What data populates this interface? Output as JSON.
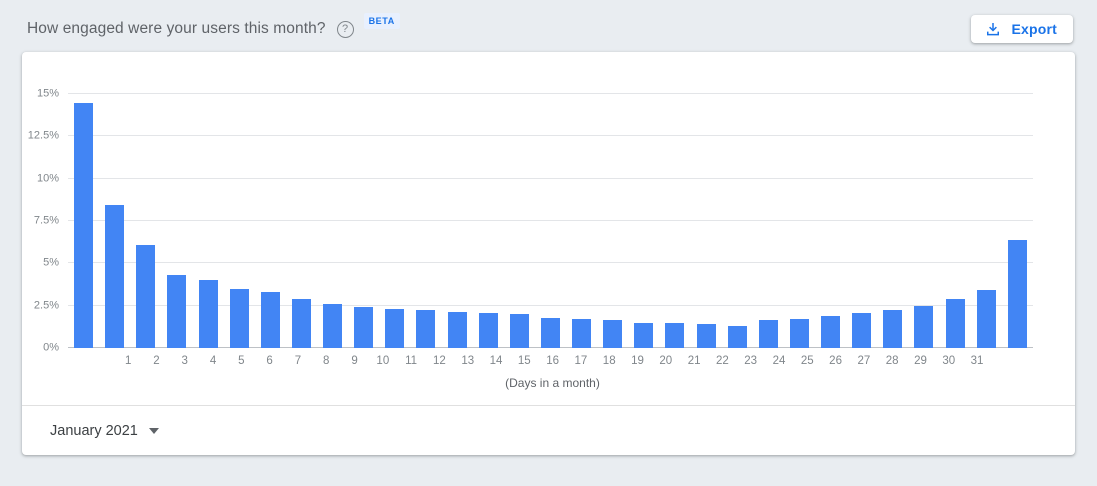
{
  "header": {
    "title": "How engaged were your users this month?",
    "help_icon": "?",
    "beta_label": "BETA",
    "export_label": "Export"
  },
  "footer": {
    "month_selector": "January 2021"
  },
  "colors": {
    "bar": "#4285f4",
    "accent": "#1a73e8",
    "beta_bg": "#e8f0fe",
    "background": "#e9edf1",
    "tick_text": "#80868b"
  },
  "chart_data": {
    "type": "bar",
    "title": "How engaged were your users this month?",
    "xlabel": "(Days in a month)",
    "ylabel": "",
    "categories": [
      1,
      2,
      3,
      4,
      5,
      6,
      7,
      8,
      9,
      10,
      11,
      12,
      13,
      14,
      15,
      16,
      17,
      18,
      19,
      20,
      21,
      22,
      23,
      24,
      25,
      26,
      27,
      28,
      29,
      30,
      31
    ],
    "values": [
      14.45,
      8.45,
      6.1,
      4.3,
      4.0,
      3.5,
      3.3,
      2.9,
      2.6,
      2.45,
      2.3,
      2.25,
      2.15,
      2.05,
      2.0,
      1.8,
      1.7,
      1.65,
      1.5,
      1.45,
      1.4,
      1.3,
      1.65,
      1.7,
      1.9,
      2.05,
      2.25,
      2.5,
      2.9,
      3.4,
      6.4
    ],
    "y_ticks": [
      0,
      2.5,
      5,
      7.5,
      10,
      12.5,
      15
    ],
    "y_tick_suffix": "%",
    "ylim": [
      0,
      15
    ],
    "grid": true,
    "legend": false
  }
}
